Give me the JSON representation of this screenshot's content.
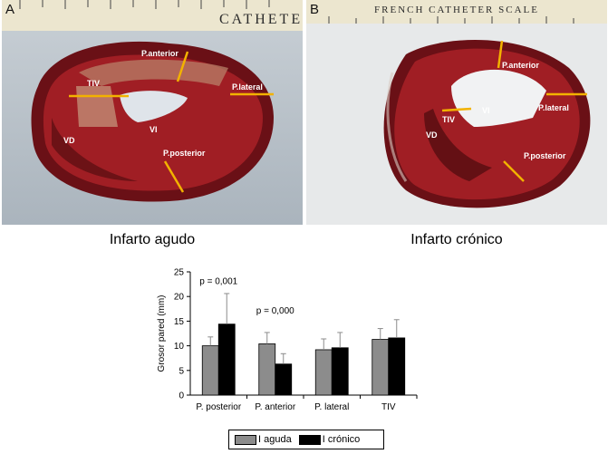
{
  "panels": [
    {
      "letter": "A",
      "caption": "Infarto agudo",
      "labels": [
        "P.anterior",
        "TIV",
        "P.lateral",
        "VI",
        "VD",
        "P.posterior"
      ]
    },
    {
      "letter": "B",
      "caption": "Infarto crónico",
      "labels": [
        "P.anterior",
        "VI",
        "P.lateral",
        "TIV",
        "VD",
        "P.posterior"
      ]
    }
  ],
  "ruler_text": {
    "a": "CATHETER",
    "b": "FRENCH CATHETER SCALE"
  },
  "colors": {
    "series_1": "#8c8c8c",
    "series_2": "#000000",
    "tissue_dark": "#5c1014",
    "tissue_red": "#9b1c22",
    "marker": "#f2b200"
  },
  "chart_data": {
    "type": "bar",
    "categories": [
      "P. posterior",
      "P. anterior",
      "P. lateral",
      "TIV"
    ],
    "series": [
      {
        "name": "I aguda",
        "values": [
          10,
          10.4,
          9.2,
          11.3
        ],
        "errors": [
          1.8,
          2.3,
          2.2,
          2.2
        ]
      },
      {
        "name": "I crónico",
        "values": [
          14.4,
          6.3,
          9.6,
          11.6
        ],
        "errors": [
          6.2,
          2.1,
          3.1,
          3.7
        ]
      }
    ],
    "ylabel": "Grosor pared (mm)",
    "ylim": [
      0,
      25
    ],
    "yticks": [
      0,
      5,
      10,
      15,
      20,
      25
    ],
    "annotations": [
      {
        "text": "p = 0,001",
        "category": "P. posterior",
        "y": 22.5
      },
      {
        "text": "p = 0,000",
        "category": "P. anterior",
        "y": 16.5
      }
    ],
    "legend": "bottom"
  }
}
